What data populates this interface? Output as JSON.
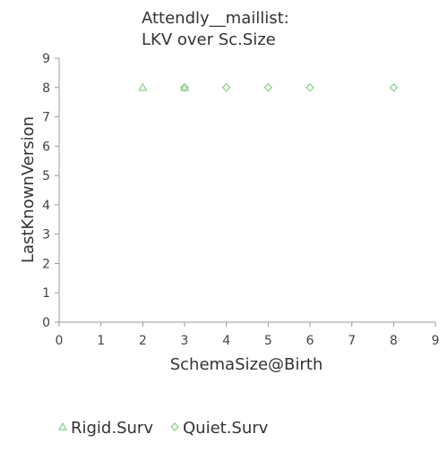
{
  "chart_data": {
    "type": "scatter",
    "title_lines": [
      "Attendly__maillist:",
      "LKV over Sc.Size"
    ],
    "xlabel": "SchemaSize@Birth",
    "ylabel": "LastKnownVersion",
    "xlim": [
      0,
      9
    ],
    "ylim": [
      0,
      9
    ],
    "xticks": [
      0,
      1,
      2,
      3,
      4,
      5,
      6,
      7,
      8,
      9
    ],
    "yticks": [
      0,
      1,
      2,
      3,
      4,
      5,
      6,
      7,
      8,
      9
    ],
    "grid": false,
    "legend_position": "bottom",
    "series": [
      {
        "name": "Rigid.Surv",
        "marker": "triangle",
        "color": "#8fd18f",
        "points": [
          {
            "x": 2,
            "y": 8
          },
          {
            "x": 3,
            "y": 8
          }
        ]
      },
      {
        "name": "Quiet.Surv",
        "marker": "diamond",
        "color": "#8fd18f",
        "points": [
          {
            "x": 3,
            "y": 8
          },
          {
            "x": 3,
            "y": 8
          },
          {
            "x": 4,
            "y": 8
          },
          {
            "x": 5,
            "y": 8
          },
          {
            "x": 6,
            "y": 8
          },
          {
            "x": 8,
            "y": 8
          }
        ]
      }
    ]
  }
}
